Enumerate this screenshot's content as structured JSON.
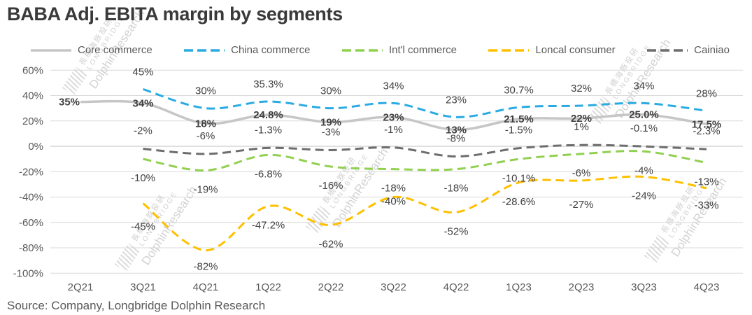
{
  "title": "BABA Adj. EBITA margin by segments",
  "source": "Source: Company, Longbridge Dolphin Research",
  "watermark": {
    "cn": "長橋海豚投研",
    "en": "LONGBRIDGE",
    "brand": "DolphinResearch"
  },
  "chart_data": {
    "type": "line",
    "title": "BABA Adj. EBITA margin by segments",
    "categories": [
      "2Q21",
      "3Q21",
      "4Q21",
      "1Q22",
      "2Q22",
      "3Q22",
      "4Q22",
      "1Q23",
      "2Q23",
      "3Q23",
      "4Q23"
    ],
    "ylim": [
      -100,
      60
    ],
    "y_ticks": [
      60,
      40,
      20,
      0,
      -20,
      -40,
      -60,
      -80,
      -100
    ],
    "y_tick_labels": [
      "60%",
      "40%",
      "20%",
      "0%",
      "-20%",
      "-40%",
      "-60%",
      "-80%",
      "-100%"
    ],
    "grid": true,
    "legend_position": "top",
    "series": [
      {
        "name": "Core commerce",
        "color": "#c6c6c6",
        "dash": "solid",
        "values": [
          35,
          34,
          18,
          24.8,
          19,
          23,
          13,
          21.5,
          22,
          25,
          17.5
        ],
        "labels": [
          "35%",
          "34%",
          "18%",
          "24.8%",
          "19%",
          "23%",
          "13%",
          "21.5%",
          "22%",
          "25.0%",
          "17.5%"
        ],
        "label_bold": true,
        "label_dy": 5,
        "label_dx_overrides": {
          "0": -16
        }
      },
      {
        "name": "China commerce",
        "color": "#29abe2",
        "dash": "dashed",
        "values": [
          null,
          45,
          30,
          35.3,
          30,
          34,
          23,
          30.7,
          32,
          34,
          28
        ],
        "labels": [
          null,
          "45%",
          "30%",
          "35.3%",
          "30%",
          "34%",
          "23%",
          "30.7%",
          "32%",
          "34%",
          "28%"
        ],
        "label_dy": -20
      },
      {
        "name": "Int'l commerce",
        "color": "#92d050",
        "dash": "dashed",
        "values": [
          null,
          -10,
          -19,
          -6.8,
          -16,
          -18,
          -18,
          -10.1,
          -6,
          -4,
          -13
        ],
        "labels": [
          null,
          "-10%",
          "-19%",
          "-6.8%",
          "-16%",
          "-18%",
          "-18%",
          "-10.1%",
          "-6%",
          "-4%",
          "-13%"
        ],
        "label_dy": 32
      },
      {
        "name": "Loncal consumer",
        "color": "#ffc000",
        "dash": "dashed",
        "values": [
          null,
          -45,
          -82,
          -47.2,
          -62,
          -40,
          -52,
          -28.6,
          -27,
          -24,
          -33
        ],
        "labels": [
          null,
          "-45%",
          "-82%",
          "-47.2%",
          "-62%",
          "-40%",
          "-52%",
          "-28.6%",
          "-27%",
          "-24%",
          "-33%"
        ],
        "label_dy": 32,
        "label_dy_overrides": {
          "1": 38,
          "2": 28,
          "5": 11,
          "8": 39,
          "10": 29
        }
      },
      {
        "name": "Cainiao",
        "color": "#6d6d6d",
        "dash": "dashed",
        "values": [
          null,
          -2,
          -6,
          -1.3,
          -3,
          -1,
          -8,
          -1.5,
          1,
          -0.1,
          -2.3
        ],
        "labels": [
          null,
          "-2%",
          "-6%",
          "-1.3%",
          "-3%",
          "-1%",
          "-8%",
          "-1.5%",
          "1%",
          "-0.1%",
          "-2.3%"
        ],
        "label_dy": -21
      }
    ]
  }
}
